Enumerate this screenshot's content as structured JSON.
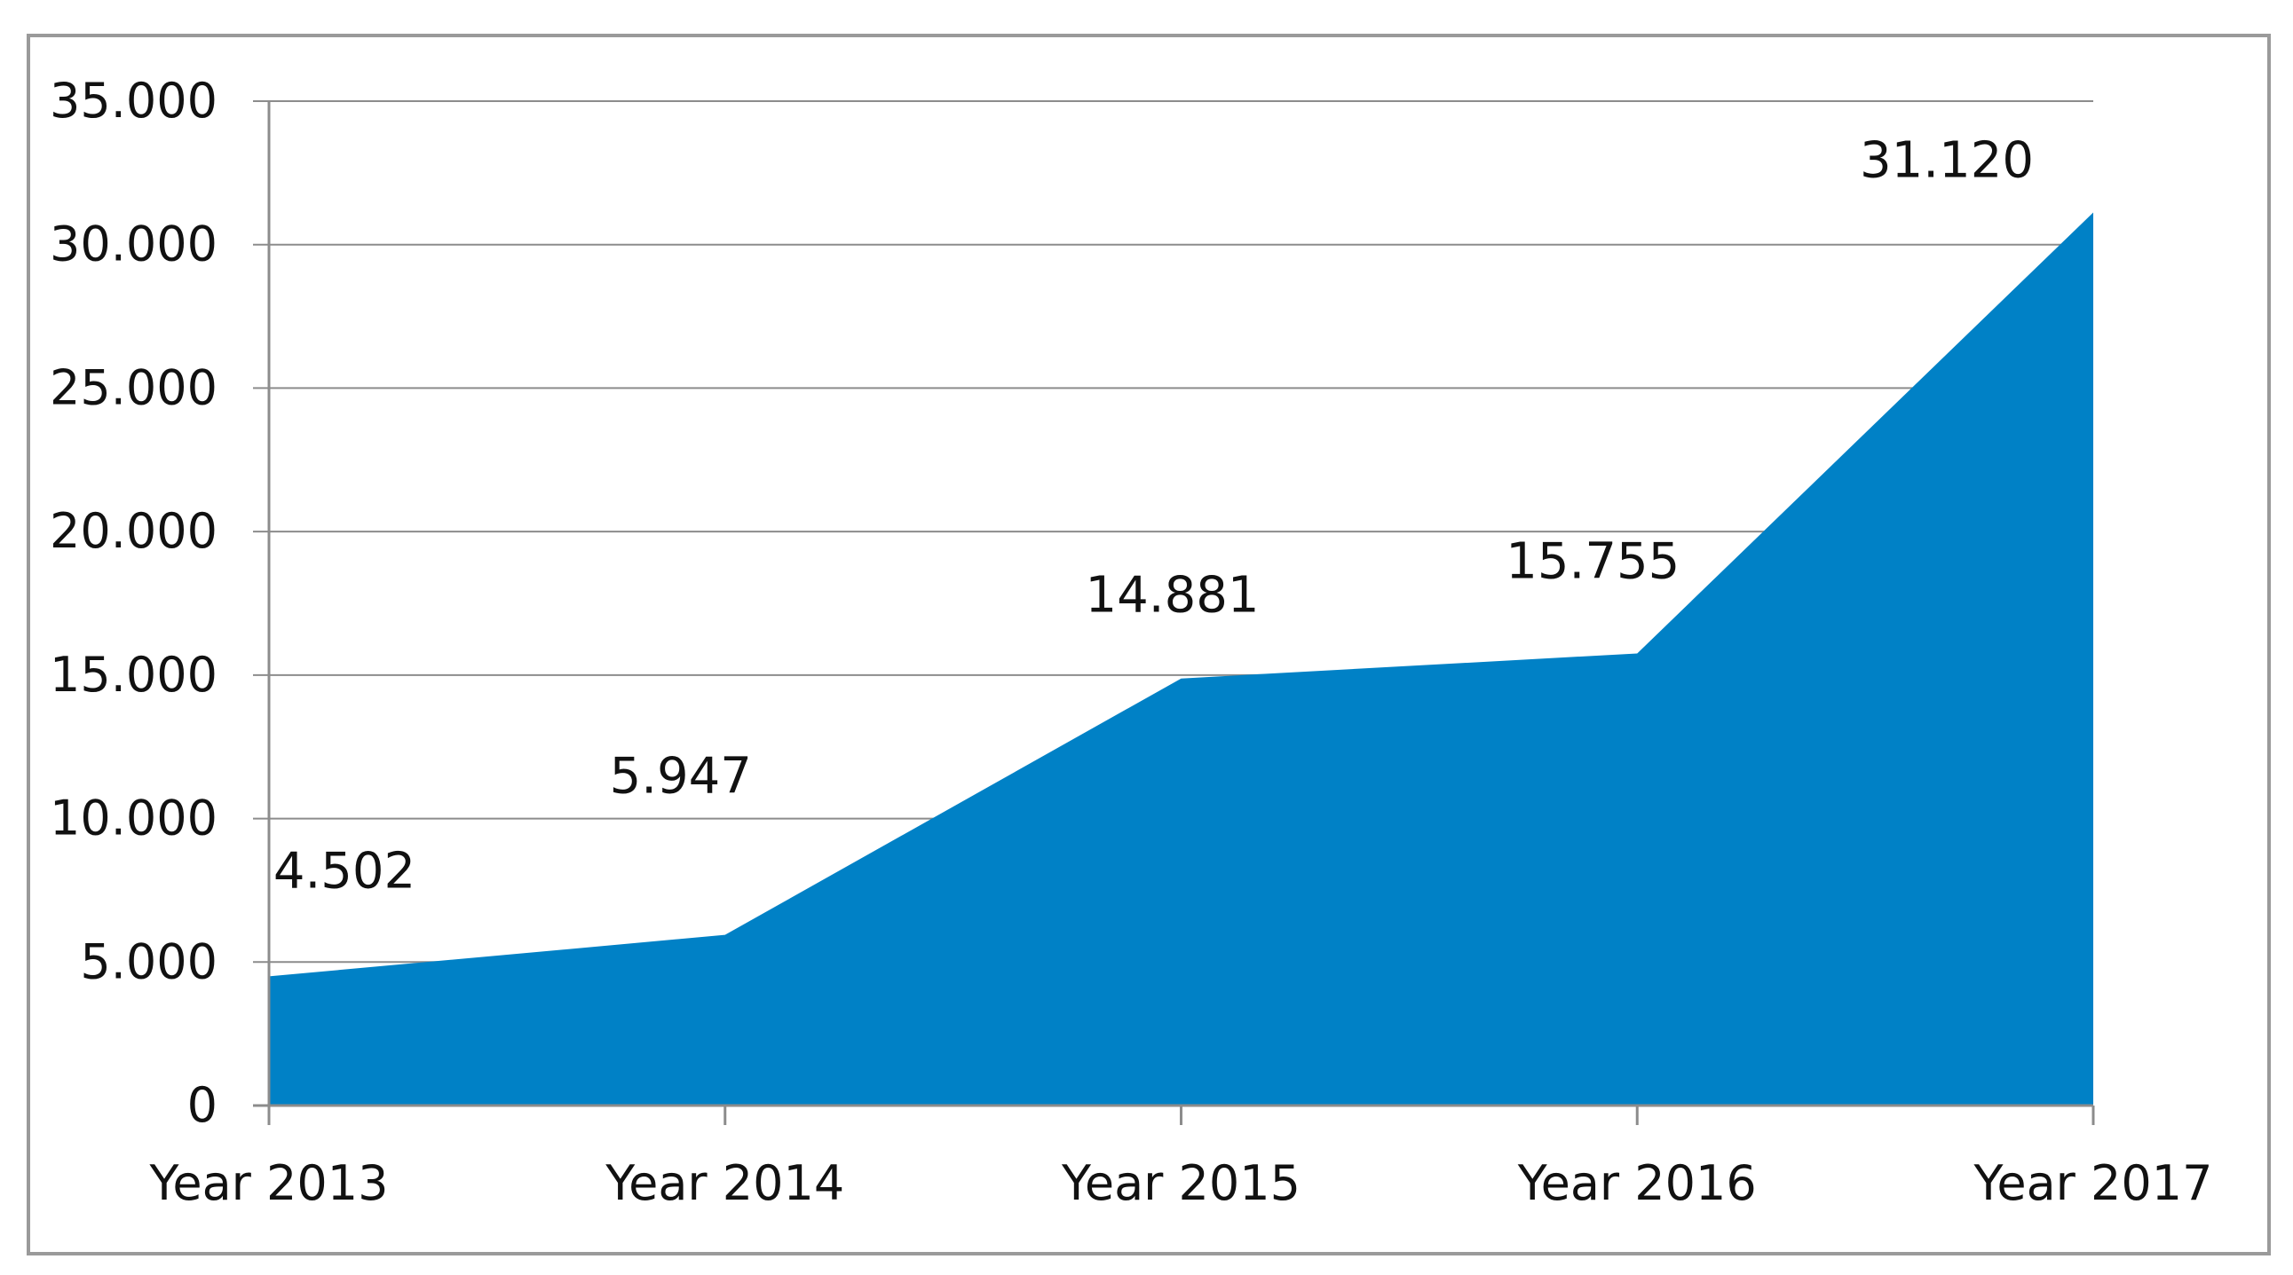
{
  "chart_data": {
    "type": "area",
    "categories": [
      "Year 2013",
      "Year 2014",
      "Year 2015",
      "Year 2016",
      "Year 2017"
    ],
    "series": [
      {
        "values": [
          4502,
          5947,
          14881,
          15755,
          31120
        ]
      }
    ],
    "data_labels": [
      "4.502",
      "5.947",
      "14.881",
      "15.755",
      "31.120"
    ],
    "y_ticks": [
      0,
      5000,
      10000,
      15000,
      20000,
      25000,
      30000,
      35000
    ],
    "y_tick_labels": [
      "0",
      "5.000",
      "10.000",
      "15.000",
      "20.000",
      "25.000",
      "30.000",
      "35.000"
    ],
    "ylim": [
      0,
      35000
    ],
    "title": "",
    "xlabel": "",
    "ylabel": "",
    "grid": "horizontal",
    "legend": "none",
    "colors": {
      "fill": "#0081c6",
      "grid": "#8c8c8c",
      "axis": "#8c8c8c",
      "text": "#111111"
    }
  }
}
